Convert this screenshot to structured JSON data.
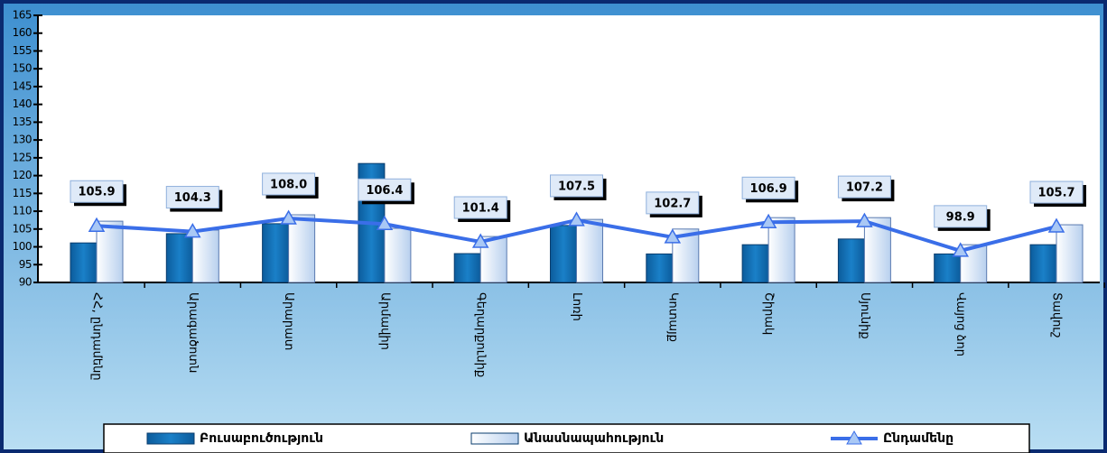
{
  "chart_data": {
    "type": "bar-line",
    "categories": [
      "ՀՀ, ընդամենը",
      "Արագածոտն",
      "Արարատ",
      "Արմավիր",
      "Գեղարքունիք",
      "Լոռի",
      "Կոտայք",
      "Շիրակ",
      "Սյունիք",
      "Վայոց ձոր",
      "Տավուշ"
    ],
    "series": [
      {
        "name": "Բուսաբուծություն",
        "kind": "bar",
        "color": "#1673b8",
        "values": [
          101.1,
          103.7,
          106.5,
          123.4,
          98.1,
          106.0,
          98.0,
          100.6,
          102.2,
          98.0,
          100.6
        ]
      },
      {
        "name": "Անասնապահություն",
        "kind": "bar",
        "color": "#dce9f7",
        "values": [
          107.2,
          104.7,
          109.0,
          105.2,
          102.9,
          107.7,
          105.0,
          108.2,
          108.2,
          100.6,
          106.2
        ]
      },
      {
        "name": "Ընդամենը",
        "kind": "line",
        "color": "#3a6ee8",
        "values": [
          105.9,
          104.3,
          108.0,
          106.4,
          101.4,
          107.5,
          102.7,
          106.9,
          107.2,
          98.9,
          105.7
        ],
        "value_labels": [
          "105.9",
          "104.3",
          "108.0",
          "106.4",
          "101.4",
          "107.5",
          "102.7",
          "106.9",
          "107.2",
          "98.9",
          "105.7"
        ]
      }
    ],
    "ylim": [
      90,
      165
    ],
    "yticks": [
      90,
      95,
      100,
      105,
      110,
      115,
      120,
      125,
      130,
      135,
      140,
      145,
      150,
      155,
      160,
      165
    ],
    "legend": "bottom"
  }
}
